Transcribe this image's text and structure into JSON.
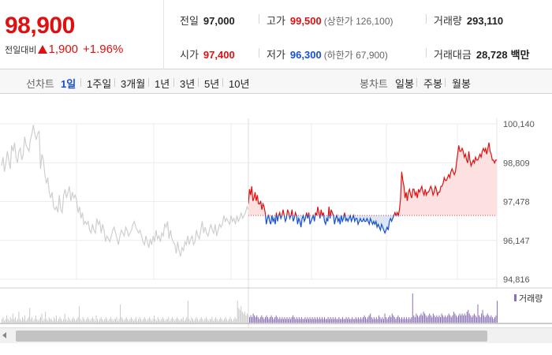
{
  "header": {
    "current_price": "98,900",
    "change_label": "전일대비",
    "change_amount": "1,900",
    "change_percent": "+1.96%",
    "stats": {
      "prev_close": {
        "label": "전일",
        "value": "97,000"
      },
      "high": {
        "label": "고가",
        "value": "99,500",
        "sub": "(상한가 126,100)"
      },
      "volume": {
        "label": "거래량",
        "value": "293,110"
      },
      "open": {
        "label": "시가",
        "value": "97,400"
      },
      "low": {
        "label": "저가",
        "value": "96,300",
        "sub": "(하한가 67,900)"
      },
      "trade_value": {
        "label": "거래대금",
        "value": "28,728",
        "unit": "백만"
      }
    }
  },
  "tabs": {
    "line_label": "선차트",
    "line_periods": [
      "1일",
      "1주일",
      "3개월",
      "1년",
      "3년",
      "5년",
      "10년"
    ],
    "active_period": "1일",
    "candle_label": "봉차트",
    "candle_periods": [
      "일봉",
      "주봉",
      "월봉"
    ]
  },
  "colors": {
    "up": "#e01010",
    "down": "#1550d0",
    "prev_day_line": "#cfcfcf",
    "volume_bar": "#8a6fb5"
  },
  "chart_data": {
    "type": "line",
    "y_ticks": [
      "100,140",
      "98,809",
      "97,478",
      "96,147",
      "94,816"
    ],
    "ylim": [
      94816,
      100140
    ],
    "baseline": 97000,
    "grid": true,
    "legend": "거래량",
    "series": [
      {
        "values_prev_day": [
          98700,
          99000,
          98500,
          98800,
          99200,
          98900,
          98600,
          99400,
          99200,
          99500,
          99000,
          98800,
          99200,
          99300,
          98900,
          99100,
          99700,
          99400,
          99300,
          99200,
          99600,
          99800,
          100100,
          99800,
          99600,
          99800,
          99900,
          98600,
          99100,
          98900,
          98400,
          98100,
          98300,
          97800,
          97600,
          97800,
          97300,
          97200,
          97300,
          97100,
          97700,
          97200,
          97100,
          97700,
          97900,
          97600,
          97800,
          98000,
          97500,
          97800,
          97600,
          97700,
          97500,
          97100,
          97300,
          96900,
          97100,
          96700,
          96800,
          96700,
          96800,
          96500,
          96400,
          96700,
          96500,
          96400,
          96900,
          96700,
          96800,
          96400,
          96700,
          96500,
          96100,
          96300,
          96200,
          96100,
          96300,
          96500,
          96600,
          96400,
          96200,
          96000,
          96300,
          96500,
          96400,
          96300,
          96600,
          96500,
          96300,
          96400,
          96500,
          96700,
          96800,
          96600,
          96500,
          96400,
          96500,
          96300,
          96100,
          96000,
          96300,
          96100,
          95900,
          96200,
          96000,
          96300,
          96100,
          96500,
          96200,
          96300,
          96100,
          96400,
          96300,
          96700,
          96600,
          96800,
          96200,
          96500,
          96200,
          96100,
          96000,
          95700,
          96100,
          95800,
          95600,
          95900,
          95800,
          96100,
          96000,
          96300,
          96000,
          96200,
          96300,
          96000,
          96100,
          96500,
          96300,
          96200,
          96500,
          96800,
          96400,
          96600,
          96400,
          96300,
          96500,
          96700,
          96500,
          96400,
          96700,
          96300,
          96500,
          96700,
          96600,
          96700,
          97000,
          96800,
          96900,
          96800,
          96700,
          97000,
          96800,
          96900,
          96700,
          97000,
          96800,
          96900,
          97100,
          96900,
          97000,
          97100,
          97300,
          97200
        ]
      },
      {
        "values_today": [
          97400,
          97900,
          97700,
          98000,
          97500,
          97600,
          97800,
          97500,
          97700,
          97400,
          97400,
          97500,
          97200,
          97400,
          97300,
          97100,
          96700,
          96900,
          97000,
          96800,
          96700,
          97000,
          96800,
          96900,
          96700,
          97100,
          96800,
          97000,
          97100,
          96900,
          97000,
          97200,
          97000,
          96800,
          96900,
          97200,
          97100,
          96900,
          97000,
          97200,
          96800,
          96900,
          97100,
          97000,
          96700,
          96900,
          96800,
          96600,
          96900,
          97000,
          96800,
          96900,
          97100,
          96900,
          97100,
          96700,
          96800,
          96900,
          97000,
          96800,
          97100,
          97000,
          97300,
          97100,
          96900,
          97200,
          97000,
          97100,
          96800,
          96700,
          96900,
          96800,
          97300,
          96900,
          97200,
          97100,
          97000,
          96700,
          96900,
          97000,
          96800,
          96900,
          96700,
          97000,
          96800,
          96900,
          97100,
          96800,
          96900,
          96800,
          96900,
          97000,
          96800,
          96900,
          97000,
          96800,
          96900,
          96900,
          96700,
          96800,
          96900,
          96800,
          96800,
          96900,
          96800,
          96800,
          96900,
          96800,
          96700,
          96900,
          96800,
          96700,
          96800,
          96700,
          96800,
          96600,
          96700,
          96600,
          96500,
          96700,
          96600,
          96500,
          96400,
          96500,
          96600,
          96500,
          96800,
          96900,
          96800,
          96900,
          97000,
          97100,
          97000,
          97100,
          97000,
          97200,
          97600,
          98500,
          98200,
          98000,
          97600,
          97800,
          97500,
          97800,
          97900,
          97700,
          97600,
          97900,
          97900,
          97700,
          97800,
          97600,
          97900,
          97800,
          97900,
          98000,
          97800,
          97700,
          97900,
          97700,
          97800,
          97800,
          97900,
          98000,
          97900,
          97700,
          97800,
          98000,
          97900,
          97700,
          97800,
          97800,
          98000,
          98000,
          98100,
          98300,
          98200,
          98200,
          98300,
          98400,
          98300,
          98500,
          98600,
          98500,
          98400,
          98500,
          98800,
          99100,
          99400,
          99200,
          99200,
          99300,
          99200,
          99000,
          99100,
          98900,
          98800,
          99200,
          98900,
          98700,
          98800,
          98900,
          98800,
          99000,
          98900,
          98900,
          99000,
          99100,
          99000,
          99200,
          99300,
          99200,
          99300,
          99100,
          99300,
          99500,
          99200,
          99100,
          98900,
          98900,
          98800,
          98900,
          98900
        ]
      },
      {
        "values_volume": [
          2,
          3,
          1,
          2,
          4,
          2,
          1,
          3,
          2,
          5,
          2,
          3,
          1,
          2,
          6,
          2,
          1,
          3,
          2,
          4,
          1,
          2,
          3,
          8,
          2,
          3,
          1,
          2,
          4,
          2,
          1,
          2,
          3,
          5,
          1,
          2,
          6,
          2,
          1,
          3,
          2,
          2,
          1,
          3,
          2,
          4,
          1,
          2,
          3,
          2,
          1,
          2,
          5,
          2,
          1,
          3,
          2,
          1,
          2,
          3,
          2,
          1,
          2,
          3,
          9,
          2,
          1,
          3,
          2,
          1,
          2,
          3,
          2,
          1,
          2,
          3,
          2,
          1,
          4,
          2,
          1,
          2,
          3,
          2,
          1,
          2,
          3,
          2,
          1,
          2,
          3,
          2,
          1,
          2,
          2,
          3,
          1,
          2,
          10,
          3,
          2,
          1,
          2,
          3,
          2,
          1,
          2,
          3,
          2,
          1,
          2,
          3,
          1,
          2,
          3,
          2,
          1,
          2,
          3,
          2,
          1,
          2,
          3,
          2,
          1,
          2,
          4,
          2,
          1,
          3,
          2,
          1,
          2,
          3,
          2,
          1,
          2,
          2,
          3,
          1,
          2,
          3,
          2,
          1,
          2,
          3,
          2,
          1,
          2,
          2,
          3,
          1,
          2,
          3,
          12,
          2,
          1,
          3,
          2,
          1,
          2,
          3,
          2,
          1,
          2,
          3,
          2,
          1,
          2,
          3,
          2,
          1,
          2,
          2,
          3,
          1,
          2,
          3,
          2,
          1,
          2,
          3,
          2,
          1,
          2,
          3,
          2,
          1,
          2,
          3,
          2,
          1,
          2,
          3,
          2,
          12,
          8,
          7,
          9,
          6,
          5,
          6,
          4,
          5,
          4,
          3,
          4,
          3,
          5,
          4,
          3,
          4,
          3,
          2,
          3,
          4,
          3,
          2,
          3,
          4,
          3,
          2,
          3,
          4,
          3,
          2,
          3,
          4,
          3,
          2,
          3,
          2,
          3,
          2,
          3,
          2,
          3,
          2,
          3,
          2,
          3,
          4,
          3,
          2,
          3,
          2,
          3,
          2,
          3,
          2,
          2,
          3,
          2,
          3,
          2,
          3,
          2,
          3,
          2,
          3,
          2,
          3,
          2,
          3,
          2,
          3,
          2,
          3,
          2,
          2,
          3,
          2,
          3,
          2,
          3,
          2,
          3,
          2,
          2,
          3,
          2,
          2,
          3,
          2,
          2,
          3,
          2,
          3,
          2,
          2,
          3,
          2,
          2,
          3,
          2,
          3,
          2,
          3,
          2,
          3,
          4,
          3,
          2,
          3,
          4,
          5,
          3,
          2,
          3,
          2,
          3,
          2,
          4,
          3,
          2,
          3,
          2,
          5,
          3,
          2,
          3,
          4,
          3,
          5,
          4,
          3,
          2,
          3,
          4,
          3,
          2,
          3,
          2,
          3,
          2,
          3,
          2,
          3,
          2,
          3,
          16,
          4,
          3,
          5,
          4,
          3,
          4,
          5,
          4,
          6,
          5,
          4,
          3,
          4,
          5,
          4,
          3,
          5,
          4,
          3,
          4,
          3,
          4,
          3,
          5,
          4,
          3,
          4,
          3,
          4,
          5,
          4,
          3,
          4,
          6,
          5,
          4,
          3,
          4,
          5,
          4,
          5,
          4,
          5,
          4,
          6,
          7,
          5,
          4,
          3,
          4,
          5,
          4,
          3,
          10,
          4,
          3,
          5,
          7,
          4,
          3,
          4,
          5,
          4,
          3,
          4,
          3,
          2,
          3,
          4,
          12
        ]
      }
    ]
  }
}
